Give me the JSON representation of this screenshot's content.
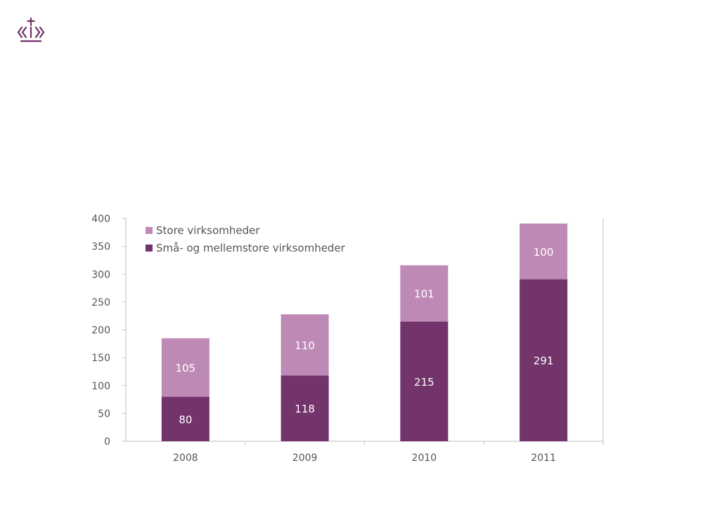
{
  "colors": {
    "accent": "#6e3068",
    "small_medium": "#73336b",
    "large": "#bf89b6",
    "axis": "#bfbfbf",
    "text": "#555555"
  },
  "logo": {
    "icon": "royal-crown-icon"
  },
  "chart_data": {
    "type": "bar",
    "stacked": true,
    "categories": [
      "2008",
      "2009",
      "2010",
      "2011"
    ],
    "series": [
      {
        "name": "Små- og mellemstore virksomheder",
        "values": [
          80,
          118,
          215,
          291
        ]
      },
      {
        "name": "Store virksomheder",
        "values": [
          105,
          110,
          101,
          100
        ]
      }
    ],
    "ylim": [
      0,
      400
    ],
    "yticks": [
      0,
      50,
      100,
      150,
      200,
      250,
      300,
      350,
      400
    ],
    "grid": false,
    "legend": "top-left",
    "title": "",
    "xlabel": "",
    "ylabel": ""
  }
}
